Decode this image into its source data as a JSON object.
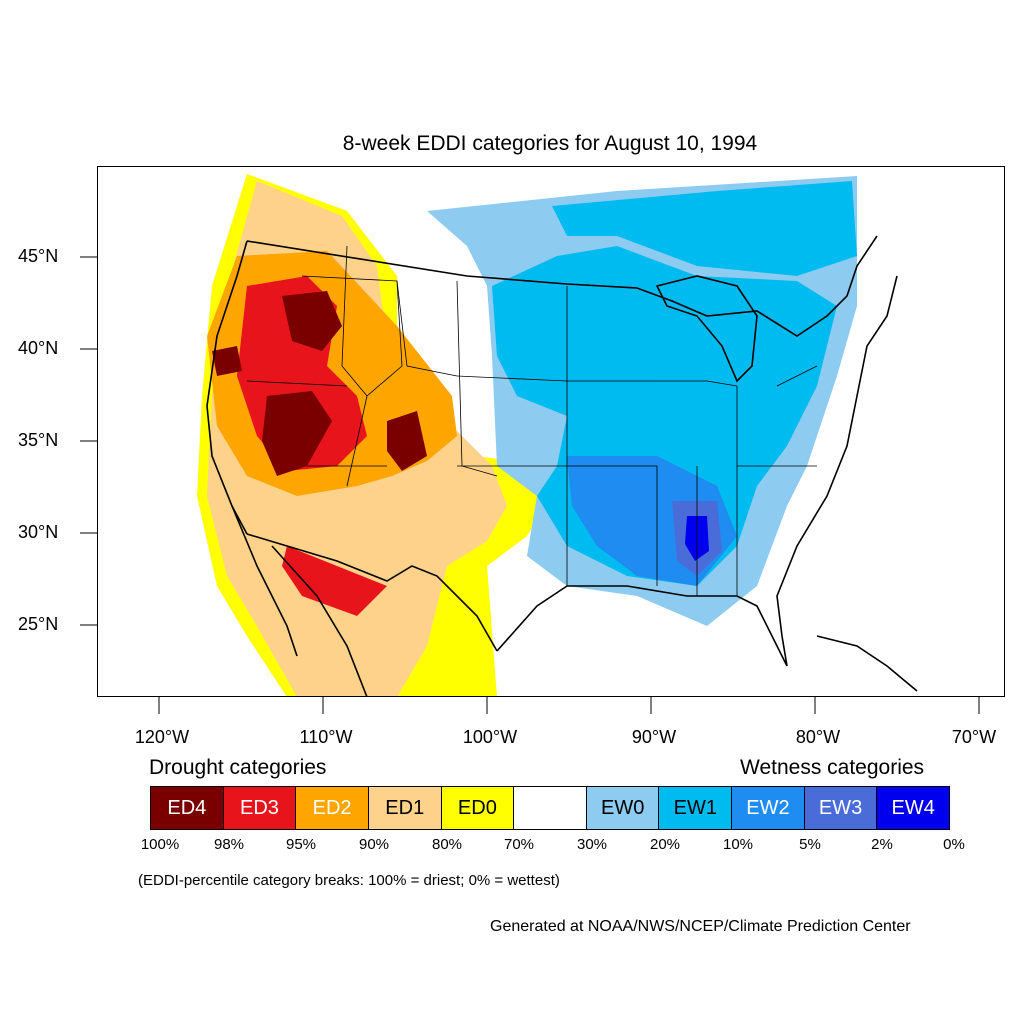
{
  "title": "8-week EDDI categories for August 10, 1994",
  "lat_labels": [
    "45°N",
    "40°N",
    "35°N",
    "30°N",
    "25°N"
  ],
  "lon_labels": [
    "120°W",
    "110°W",
    "100°W",
    "90°W",
    "80°W",
    "70°W"
  ],
  "legend": {
    "drought_title": "Drought categories",
    "wetness_title": "Wetness categories",
    "categories": [
      {
        "label": "ED4",
        "color": "#7a0000",
        "text_color": "#ffffff"
      },
      {
        "label": "ED3",
        "color": "#e8141c",
        "text_color": "#ffffff"
      },
      {
        "label": "ED2",
        "color": "#ffa500",
        "text_color": "#ffffff"
      },
      {
        "label": "ED1",
        "color": "#fed28a",
        "text_color": "#000000"
      },
      {
        "label": "ED0",
        "color": "#ffff00",
        "text_color": "#000000"
      },
      {
        "label": "",
        "color": "#ffffff",
        "text_color": "#000000"
      },
      {
        "label": "EW0",
        "color": "#8ecbf0",
        "text_color": "#000000"
      },
      {
        "label": "EW1",
        "color": "#00bbf0",
        "text_color": "#000000"
      },
      {
        "label": "EW2",
        "color": "#1e8cf0",
        "text_color": "#ffffff"
      },
      {
        "label": "EW3",
        "color": "#4a6cd8",
        "text_color": "#ffffff"
      },
      {
        "label": "EW4",
        "color": "#0000ee",
        "text_color": "#ffffff"
      }
    ],
    "breaks": [
      "100%",
      "98%",
      "95%",
      "90%",
      "80%",
      "70%",
      "30%",
      "20%",
      "10%",
      "5%",
      "2%",
      "0%"
    ]
  },
  "break_note": "(EDDI-percentile category breaks: 100% = driest; 0% = wettest)",
  "credit": "Generated at NOAA/NWS/NCEP/Climate Prediction Center"
}
